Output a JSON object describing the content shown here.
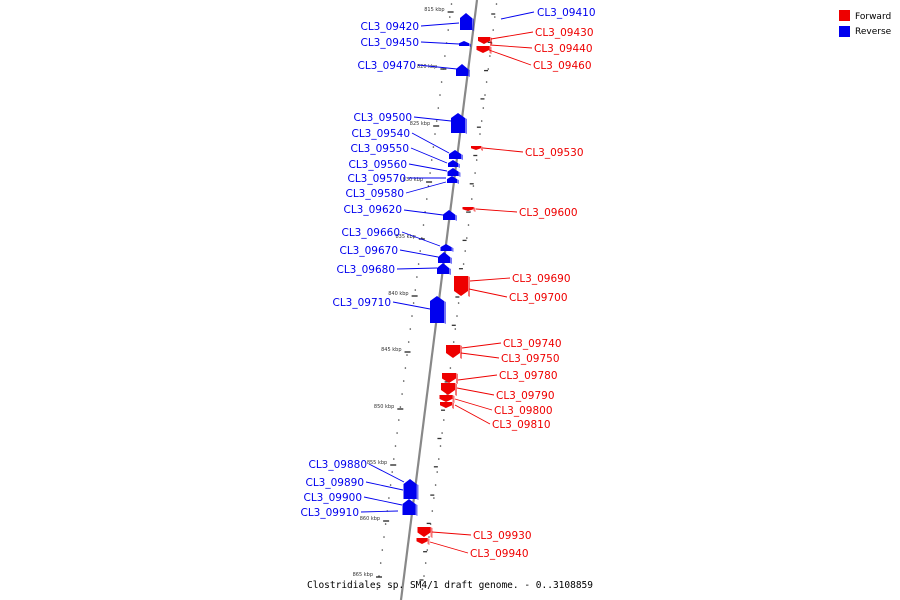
{
  "colors": {
    "forward": "#ee0000",
    "reverse": "#0000ee",
    "backbone": "#888888",
    "tick": "#333333"
  },
  "legend": {
    "items": [
      {
        "label": "Forward",
        "color": "#ee0000"
      },
      {
        "label": "Reverse",
        "color": "#0000ee"
      }
    ]
  },
  "caption": "Clostridiales sp. SM4/1 draft genome. - 0..3108859",
  "position_ticks": [
    "815 kbp",
    "820 kbp",
    "825 kbp",
    "830 kbp",
    "835 kbp",
    "840 kbp",
    "845 kbp",
    "850 kbp",
    "855 kbp",
    "860 kbp",
    "865 kbp"
  ],
  "genes_reverse": [
    "CL3_09410",
    "CL3_09420",
    "CL3_09450",
    "CL3_09470",
    "CL3_09500",
    "CL3_09540",
    "CL3_09550",
    "CL3_09560",
    "CL3_09570",
    "CL3_09580",
    "CL3_09620",
    "CL3_09660",
    "CL3_09670",
    "CL3_09680",
    "CL3_09710",
    "CL3_09880",
    "CL3_09890",
    "CL3_09900",
    "CL3_09910"
  ],
  "genes_forward": [
    "CL3_09430",
    "CL3_09440",
    "CL3_09460",
    "CL3_09530",
    "CL3_09600",
    "CL3_09690",
    "CL3_09700",
    "CL3_09740",
    "CL3_09750",
    "CL3_09780",
    "CL3_09790",
    "CL3_09800",
    "CL3_09810",
    "CL3_09930",
    "CL3_09940"
  ]
}
